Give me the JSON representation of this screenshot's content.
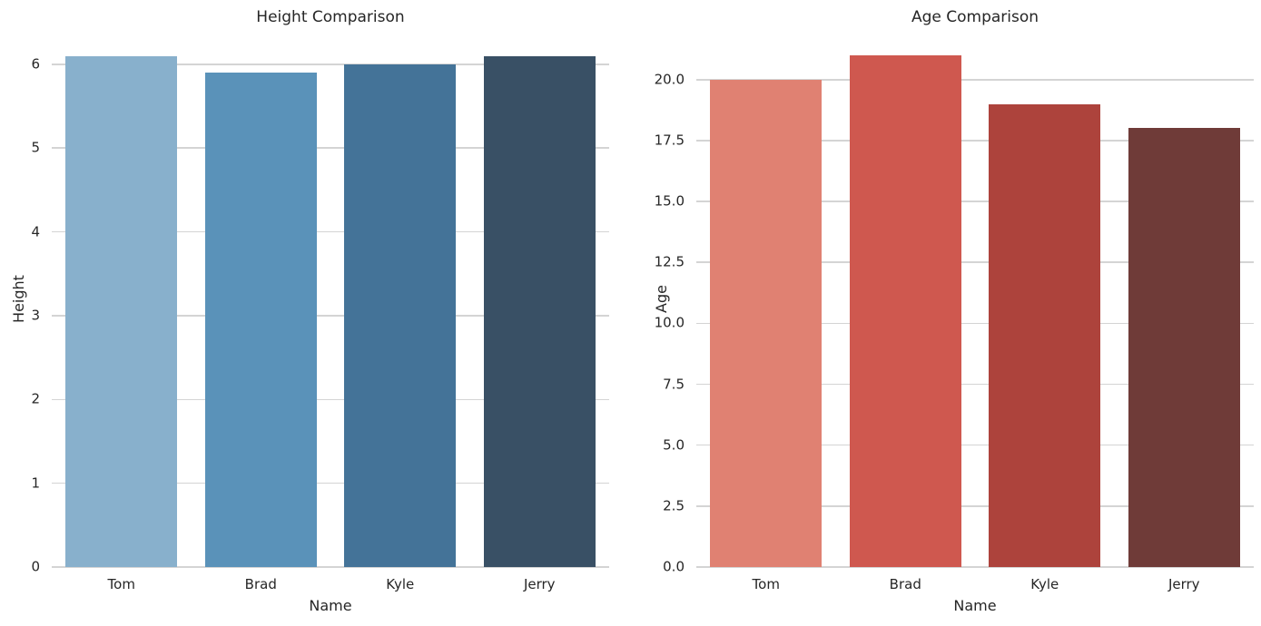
{
  "figure": {
    "background": "#ffffff",
    "grid_color": "#d4d4d4",
    "text_color": "#262626"
  },
  "chart_data": [
    {
      "type": "bar",
      "title": "Height Comparison",
      "xlabel": "Name",
      "ylabel": "Height",
      "categories": [
        "Tom",
        "Brad",
        "Kyle",
        "Jerry"
      ],
      "values": [
        6.1,
        5.9,
        6.0,
        6.1
      ],
      "bar_colors": [
        "#88b0cc",
        "#5a92b9",
        "#447398",
        "#395065"
      ],
      "ylim": [
        0,
        6.4
      ],
      "yticks": [
        0,
        1,
        2,
        3,
        4,
        5,
        6
      ],
      "ytick_labels": [
        "0",
        "1",
        "2",
        "3",
        "4",
        "5",
        "6"
      ],
      "grid": true,
      "legend": false,
      "bar_width_fraction": 0.8
    },
    {
      "type": "bar",
      "title": "Age Comparison",
      "xlabel": "Name",
      "ylabel": "Age",
      "categories": [
        "Tom",
        "Brad",
        "Kyle",
        "Jerry"
      ],
      "values": [
        20,
        21,
        19,
        18
      ],
      "bar_colors": [
        "#e08172",
        "#cf584f",
        "#ad433c",
        "#6f3b38"
      ],
      "ylim": [
        0,
        22
      ],
      "yticks": [
        0,
        2.5,
        5,
        7.5,
        10,
        12.5,
        15,
        17.5,
        20
      ],
      "ytick_labels": [
        "0.0",
        "2.5",
        "5.0",
        "7.5",
        "10.0",
        "12.5",
        "15.0",
        "17.5",
        "20.0"
      ],
      "grid": true,
      "legend": false,
      "bar_width_fraction": 0.8
    }
  ]
}
